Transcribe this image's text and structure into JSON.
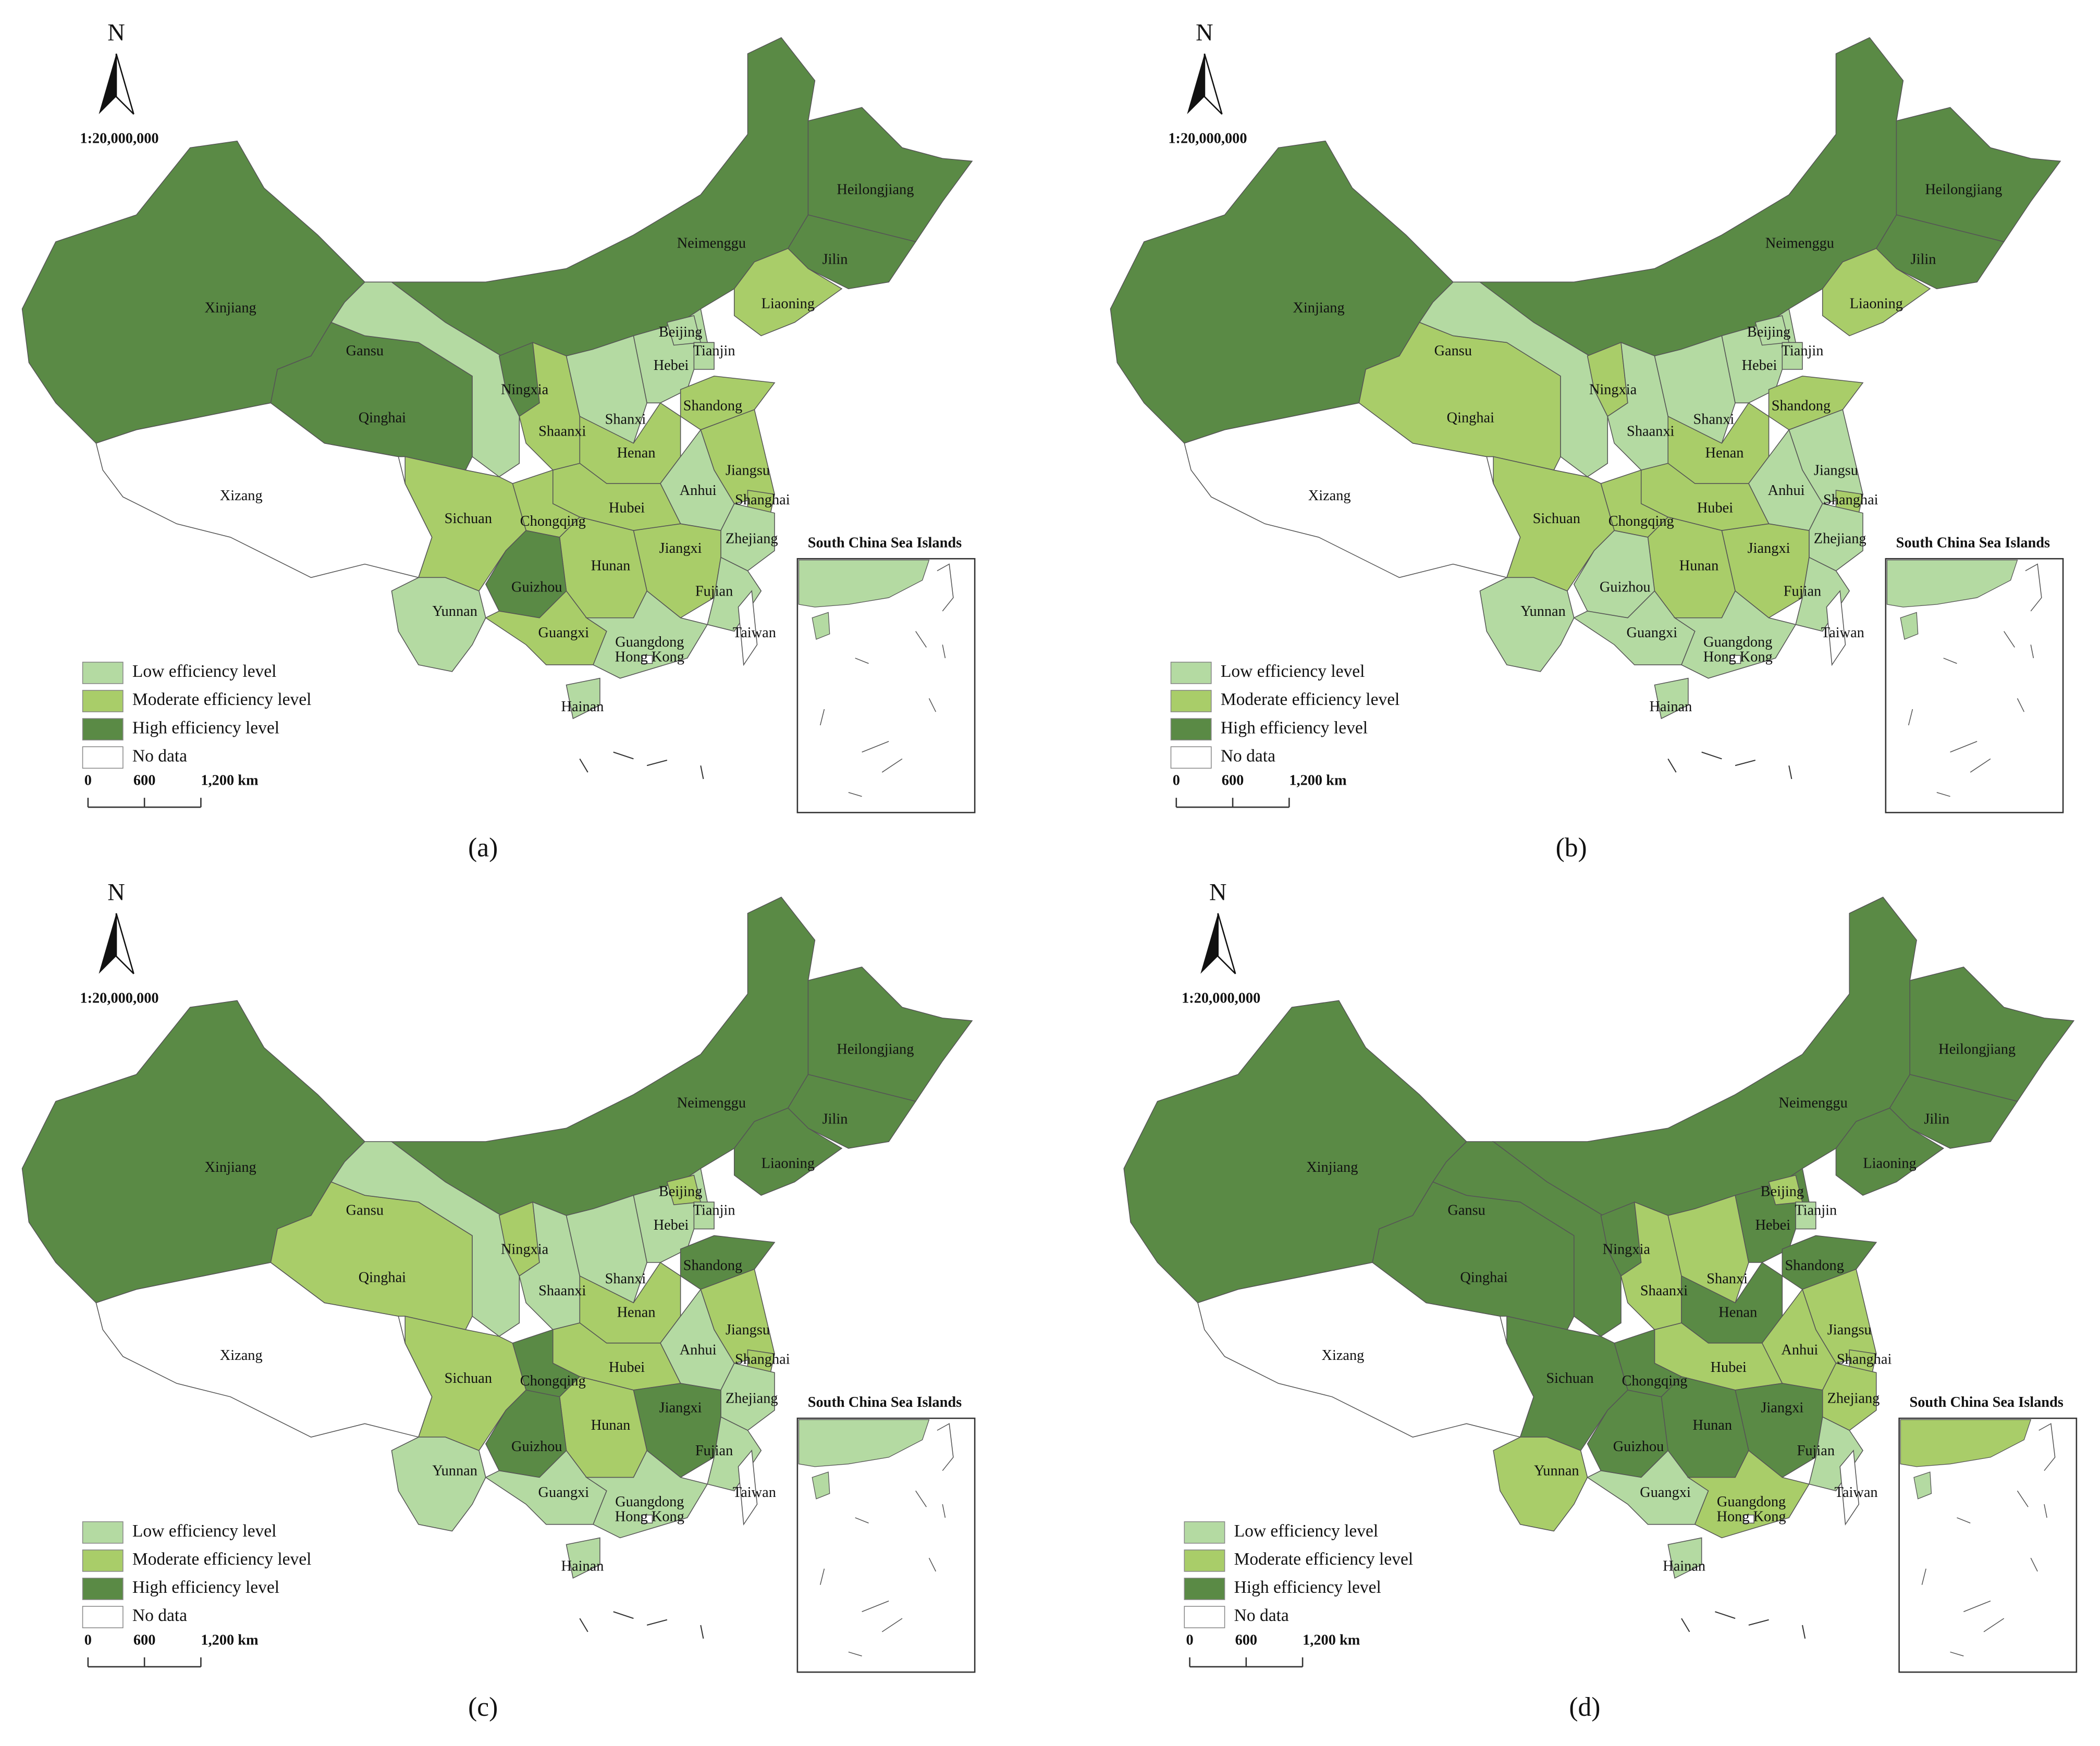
{
  "map": {
    "north": "N",
    "scale_ratio": "1:20,000,000",
    "scale_bar": [
      "0",
      "600",
      "1,200 km"
    ],
    "inset_title": "South China Sea Islands",
    "legend": [
      {
        "label": "Low efficiency level",
        "color": "#b4daa2"
      },
      {
        "label": "Moderate efficiency level",
        "color": "#a9cd69"
      },
      {
        "label": "High efficiency level",
        "color": "#5a8a45"
      },
      {
        "label": "No data",
        "color": "#ffffff"
      }
    ],
    "provinces": [
      "Xinjiang",
      "Xizang",
      "Qinghai",
      "Gansu",
      "Neimenggu",
      "Heilongjiang",
      "Jilin",
      "Liaoning",
      "Ningxia",
      "Shaanxi",
      "Shanxi",
      "Hebei",
      "Beijing",
      "Tianjin",
      "Shandong",
      "Henan",
      "Jiangsu",
      "Anhui",
      "Shanghai",
      "Hubei",
      "Chongqing",
      "Sichuan",
      "Zhejiang",
      "Jiangxi",
      "Hunan",
      "Fujian",
      "Guizhou",
      "Yunnan",
      "Guangxi",
      "Guangdong",
      "Hong Kong",
      "Hainan",
      "Taiwan"
    ],
    "panels": [
      {
        "caption": "(a)",
        "levels": [
          2,
          3,
          2,
          0,
          2,
          2,
          2,
          1,
          2,
          1,
          0,
          0,
          0,
          0,
          1,
          1,
          1,
          0,
          1,
          1,
          1,
          1,
          0,
          1,
          1,
          0,
          2,
          0,
          1,
          0,
          3,
          0,
          3
        ]
      },
      {
        "caption": "(b)",
        "levels": [
          2,
          3,
          1,
          0,
          2,
          2,
          2,
          1,
          1,
          0,
          0,
          0,
          0,
          0,
          1,
          1,
          0,
          0,
          1,
          1,
          1,
          1,
          0,
          1,
          1,
          0,
          0,
          0,
          0,
          0,
          3,
          0,
          3
        ]
      },
      {
        "caption": "(c)",
        "levels": [
          2,
          3,
          1,
          0,
          2,
          2,
          2,
          2,
          1,
          0,
          0,
          0,
          1,
          0,
          2,
          1,
          1,
          0,
          1,
          1,
          2,
          1,
          0,
          2,
          1,
          0,
          2,
          0,
          0,
          0,
          3,
          0,
          3
        ]
      },
      {
        "caption": "(d)",
        "levels": [
          2,
          3,
          2,
          2,
          2,
          2,
          2,
          2,
          2,
          1,
          1,
          2,
          1,
          0,
          2,
          2,
          1,
          1,
          1,
          1,
          2,
          2,
          1,
          2,
          2,
          0,
          2,
          1,
          0,
          1,
          3,
          0,
          3
        ]
      }
    ]
  }
}
